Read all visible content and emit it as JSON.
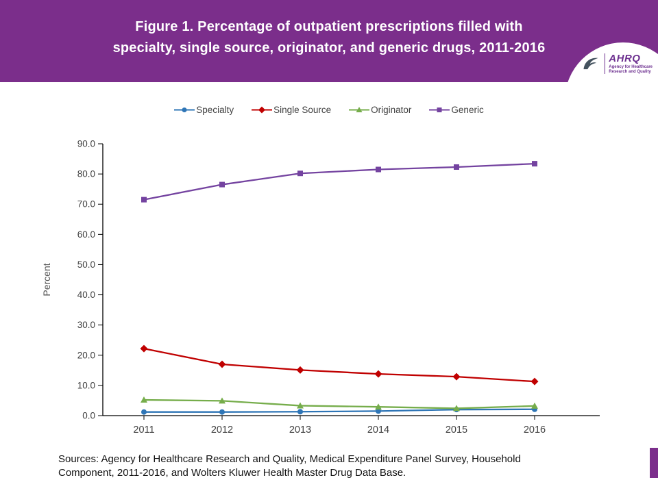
{
  "header": {
    "title_line1": "Figure 1. Percentage of outpatient prescriptions filled with",
    "title_line2": "specialty, single source, originator, and generic drugs, 2011-2016",
    "accent_color": "#7B2E8B",
    "logo": {
      "org": "AHRQ",
      "tagline_line1": "Agency for Healthcare",
      "tagline_line2": "Research and Quality"
    }
  },
  "footer": {
    "line1": "Sources: Agency for Healthcare Research and Quality, Medical Expenditure Panel Survey, Household",
    "line2": "Component, 2011-2016, and Wolters Kluwer Health Master Drug Data Base."
  },
  "side_tab_color": "#7B2E8B",
  "chart_data": {
    "type": "line",
    "title": "Figure 1. Percentage of outpatient prescriptions filled with specialty, single source, originator, and generic drugs, 2011-2016",
    "x": [
      2011,
      2012,
      2013,
      2014,
      2015,
      2016
    ],
    "xlabel": "",
    "ylabel": "Percent",
    "ylim": [
      0,
      90
    ],
    "ytick_step": 10,
    "grid": false,
    "legend_position": "top",
    "series": [
      {
        "name": "Specialty",
        "marker": "circle",
        "color": "#2E75B6",
        "values": [
          1.2,
          1.2,
          1.3,
          1.5,
          2.0,
          2.1
        ]
      },
      {
        "name": "Single Source",
        "marker": "diamond",
        "color": "#C00000",
        "values": [
          22.2,
          17.0,
          15.1,
          13.8,
          12.9,
          11.3
        ]
      },
      {
        "name": "Originator",
        "marker": "triangle",
        "color": "#76AD4B",
        "values": [
          5.2,
          4.9,
          3.3,
          2.9,
          2.4,
          3.2
        ]
      },
      {
        "name": "Generic",
        "marker": "square",
        "color": "#7443A0",
        "values": [
          71.5,
          76.5,
          80.2,
          81.5,
          82.3,
          83.4
        ]
      }
    ]
  }
}
